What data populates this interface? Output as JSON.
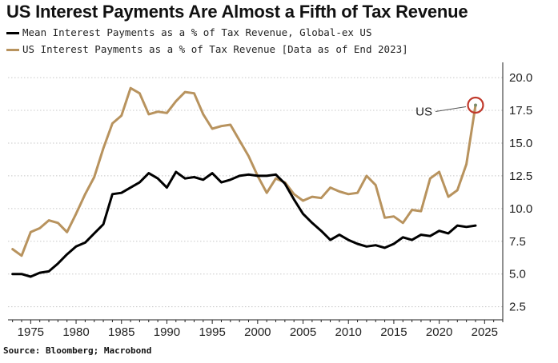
{
  "title": "US Interest Payments Are Almost a Fifth of Tax Revenue",
  "source": "Source: Bloomberg; Macrobond",
  "annotation": "US",
  "colors": {
    "global_ex_us": "#000000",
    "us": "#b8935e",
    "highlight_ring": "#c0392b"
  },
  "chart_data": {
    "type": "line",
    "title": "US Interest Payments Are Almost a Fifth of Tax Revenue",
    "xlabel": "",
    "ylabel": "",
    "xlim": [
      1972.5,
      2027
    ],
    "ylim": [
      1.5,
      20.8
    ],
    "x_ticks": [
      1975,
      1980,
      1985,
      1990,
      1995,
      2000,
      2005,
      2010,
      2015,
      2020,
      2025
    ],
    "y_ticks": [
      2.5,
      5.0,
      7.5,
      10.0,
      12.5,
      15.0,
      17.5,
      20.0
    ],
    "y_axis_position": "right",
    "grid": "horizontal dotted",
    "legend_position": "top-left",
    "series": [
      {
        "name": "Mean Interest Payments as a % of Tax Revenue, Global-ex US",
        "color": "#000000",
        "points": [
          [
            1973,
            5.0
          ],
          [
            1974,
            5.0
          ],
          [
            1975,
            4.8
          ],
          [
            1976,
            5.1
          ],
          [
            1977,
            5.2
          ],
          [
            1978,
            5.8
          ],
          [
            1979,
            6.5
          ],
          [
            1980,
            7.1
          ],
          [
            1981,
            7.4
          ],
          [
            1982,
            8.1
          ],
          [
            1983,
            8.8
          ],
          [
            1984,
            11.1
          ],
          [
            1985,
            11.2
          ],
          [
            1986,
            11.6
          ],
          [
            1987,
            12.0
          ],
          [
            1988,
            12.7
          ],
          [
            1989,
            12.3
          ],
          [
            1990,
            11.6
          ],
          [
            1991,
            12.8
          ],
          [
            1992,
            12.3
          ],
          [
            1993,
            12.4
          ],
          [
            1994,
            12.2
          ],
          [
            1995,
            12.7
          ],
          [
            1996,
            12.0
          ],
          [
            1997,
            12.2
          ],
          [
            1998,
            12.5
          ],
          [
            1999,
            12.6
          ],
          [
            2000,
            12.5
          ],
          [
            2001,
            12.5
          ],
          [
            2002,
            12.6
          ],
          [
            2003,
            11.9
          ],
          [
            2004,
            10.7
          ],
          [
            2005,
            9.6
          ],
          [
            2006,
            8.9
          ],
          [
            2007,
            8.3
          ],
          [
            2008,
            7.6
          ],
          [
            2009,
            8.0
          ],
          [
            2010,
            7.6
          ],
          [
            2011,
            7.3
          ],
          [
            2012,
            7.1
          ],
          [
            2013,
            7.2
          ],
          [
            2014,
            7.0
          ],
          [
            2015,
            7.3
          ],
          [
            2016,
            7.8
          ],
          [
            2017,
            7.6
          ],
          [
            2018,
            8.0
          ],
          [
            2019,
            7.9
          ],
          [
            2020,
            8.3
          ],
          [
            2021,
            8.1
          ],
          [
            2022,
            8.7
          ],
          [
            2023,
            8.6
          ],
          [
            2024,
            8.7
          ]
        ]
      },
      {
        "name": "US Interest Payments as a % of Tax Revenue [Data as of End 2023]",
        "color": "#b8935e",
        "points": [
          [
            1973,
            6.9
          ],
          [
            1974,
            6.4
          ],
          [
            1975,
            8.2
          ],
          [
            1976,
            8.5
          ],
          [
            1977,
            9.1
          ],
          [
            1978,
            8.9
          ],
          [
            1979,
            8.2
          ],
          [
            1980,
            9.6
          ],
          [
            1981,
            11.1
          ],
          [
            1982,
            12.4
          ],
          [
            1983,
            14.6
          ],
          [
            1984,
            16.5
          ],
          [
            1985,
            17.1
          ],
          [
            1986,
            19.2
          ],
          [
            1987,
            18.8
          ],
          [
            1988,
            17.2
          ],
          [
            1989,
            17.4
          ],
          [
            1990,
            17.3
          ],
          [
            1991,
            18.2
          ],
          [
            1992,
            18.9
          ],
          [
            1993,
            18.8
          ],
          [
            1994,
            17.2
          ],
          [
            1995,
            16.1
          ],
          [
            1996,
            16.3
          ],
          [
            1997,
            16.4
          ],
          [
            1998,
            15.2
          ],
          [
            1999,
            14.0
          ],
          [
            2000,
            12.5
          ],
          [
            2001,
            11.2
          ],
          [
            2002,
            12.3
          ],
          [
            2003,
            12.0
          ],
          [
            2004,
            11.1
          ],
          [
            2005,
            10.6
          ],
          [
            2006,
            10.9
          ],
          [
            2007,
            10.8
          ],
          [
            2008,
            11.6
          ],
          [
            2009,
            11.3
          ],
          [
            2010,
            11.1
          ],
          [
            2011,
            11.2
          ],
          [
            2012,
            12.5
          ],
          [
            2013,
            11.8
          ],
          [
            2014,
            9.3
          ],
          [
            2015,
            9.4
          ],
          [
            2016,
            8.9
          ],
          [
            2017,
            9.9
          ],
          [
            2018,
            9.8
          ],
          [
            2019,
            12.3
          ],
          [
            2020,
            12.8
          ],
          [
            2021,
            10.9
          ],
          [
            2022,
            11.4
          ],
          [
            2023,
            13.4
          ],
          [
            2024,
            17.9
          ]
        ]
      }
    ]
  }
}
